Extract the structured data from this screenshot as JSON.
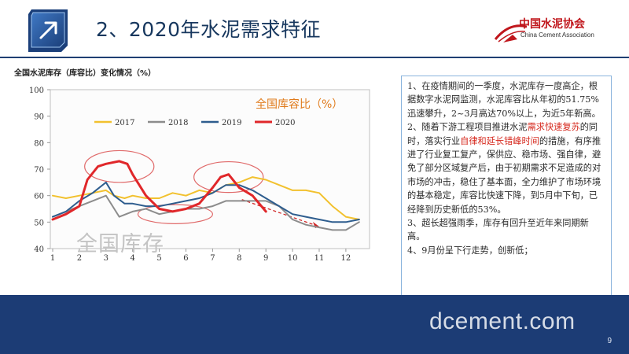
{
  "header": {
    "title": "2、2020年水泥需求特征",
    "org_name_cn": "中国水泥协会",
    "org_name_en": "China Cement Association"
  },
  "chart_title": "全国水泥库存（库容比）变化情况（%）",
  "chart_inner_label": "全国库容比（%）",
  "chart_watermark": "全国库存",
  "colors": {
    "2017": "#f2c12e",
    "2018": "#8c8c8c",
    "2019": "#2e5d8e",
    "2020": "#e0272a",
    "header_blue": "#1c3c75",
    "accent_red": "#d6281d"
  },
  "chart_data": {
    "type": "line",
    "title": "全国水泥库存（库容比）变化情况（%）",
    "xlabel": "",
    "ylabel": "",
    "x_ticks": [
      "1",
      "2",
      "3",
      "4",
      "5",
      "6",
      "7",
      "8",
      "9",
      "10",
      "11",
      "12"
    ],
    "y_ticks": [
      "40",
      "50",
      "60",
      "70",
      "80",
      "90",
      "100"
    ],
    "ylim": [
      40,
      100
    ],
    "grid": false,
    "legend_position": "top",
    "series": [
      {
        "name": "2017",
        "x": [
          1,
          1.5,
          2,
          2.5,
          3,
          3.3,
          3.7,
          4,
          4.5,
          5,
          5.5,
          6,
          6.5,
          7,
          7.5,
          8,
          8.5,
          9,
          9.5,
          10,
          10.5,
          11,
          11.5,
          12,
          12.5
        ],
        "values": [
          60,
          59,
          60,
          61,
          62,
          60,
          59,
          60,
          59,
          59,
          61,
          60,
          62,
          61,
          64,
          65,
          67,
          66,
          64,
          62,
          62,
          61,
          56,
          52,
          51
        ]
      },
      {
        "name": "2018",
        "x": [
          1,
          1.5,
          2,
          2.5,
          3,
          3.5,
          4,
          4.5,
          5,
          5.5,
          6,
          6.5,
          7,
          7.5,
          8,
          8.5,
          9,
          9.5,
          10,
          10.5,
          11,
          11.5,
          12,
          12.5
        ],
        "values": [
          52,
          54,
          56,
          58,
          60,
          52,
          54,
          55,
          53,
          54,
          55,
          55,
          56,
          58,
          58,
          58,
          58,
          56,
          51,
          49,
          48,
          47,
          47,
          50
        ]
      },
      {
        "name": "2019",
        "x": [
          1,
          1.5,
          2,
          2.5,
          3,
          3.3,
          3.7,
          4,
          4.5,
          5,
          5.5,
          6,
          6.5,
          7,
          7.5,
          8,
          8.5,
          9,
          9.5,
          10,
          10.5,
          11,
          11.5,
          12,
          12.5
        ],
        "values": [
          52,
          54,
          58,
          61,
          65,
          60,
          57,
          57,
          56,
          56,
          57,
          58,
          59,
          61,
          64,
          64,
          62,
          59,
          56,
          53,
          52,
          51,
          50,
          50,
          51
        ]
      },
      {
        "name": "2020",
        "x": [
          1,
          1.5,
          2,
          2.3,
          2.7,
          3,
          3.5,
          3.8,
          4,
          4.5,
          5,
          5.5,
          6,
          6.5,
          7,
          7.3,
          7.6,
          8,
          8.5,
          9
        ],
        "values": [
          51,
          53,
          56,
          66,
          71,
          72,
          73,
          72,
          68,
          60,
          55,
          54,
          55,
          57,
          63,
          67,
          68,
          63,
          60,
          54
        ]
      }
    ]
  },
  "paragraphs": [
    [
      {
        "text": "1、在疫情期间的一季度，水泥库存一度高企，根据数字水泥网监测，水泥库容比从年初的51.75%迅速攀升，2~3月高达70%以上，为近5年新高。",
        "style": "normal"
      }
    ],
    [
      {
        "text": "2、随着下游工程项目推进水泥",
        "style": "normal"
      },
      {
        "text": "需求快速复苏",
        "style": "red"
      },
      {
        "text": "的同时，落实行业",
        "style": "normal"
      },
      {
        "text": "自律和延长错峰时间",
        "style": "red"
      },
      {
        "text": "的措施，有序推进了行业复工复产，保供应、稳市场、强自律，避免了部分区域复产后，由于初期需求不足造成的对市场的冲击，稳住了基本面，全力维护了市场环境的基本稳定，库容比快速下降，到5月中下旬，已经降到历史新低的53%。",
        "style": "normal"
      }
    ],
    [
      {
        "text": "3、超长超强雨季，库存有回升至近年来同期新高。",
        "style": "normal"
      }
    ],
    [
      {
        "text": "4、9月份呈下行走势，创新低；",
        "style": "normal"
      }
    ]
  ],
  "footer": {
    "watermark": "dcement.com",
    "page_number": "9"
  }
}
